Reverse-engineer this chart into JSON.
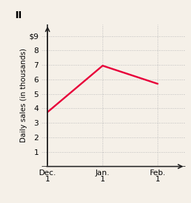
{
  "title": "II",
  "x_labels": [
    "Dec.\n1",
    "Jan.\n1",
    "Feb.\n1"
  ],
  "x_values": [
    0,
    1,
    2
  ],
  "y_values": [
    3.75,
    6.95,
    5.7
  ],
  "ylabel": "Daily sales (in thousands)",
  "y_tick_labels": [
    "$9",
    "8",
    "7",
    "6",
    "5",
    "4",
    "3",
    "2",
    "1"
  ],
  "y_ticks": [
    9,
    8,
    7,
    6,
    5,
    4,
    3,
    2,
    1
  ],
  "ylim": [
    0,
    9.8
  ],
  "xlim": [
    -0.1,
    2.5
  ],
  "line_color": "#e8003a",
  "line_width": 1.8,
  "grid_color": "#bbbbbb",
  "background_color": "#f5f0e8",
  "title_fontsize": 10,
  "label_fontsize": 7.5,
  "tick_fontsize": 8.0,
  "arrow_color": "#222222"
}
